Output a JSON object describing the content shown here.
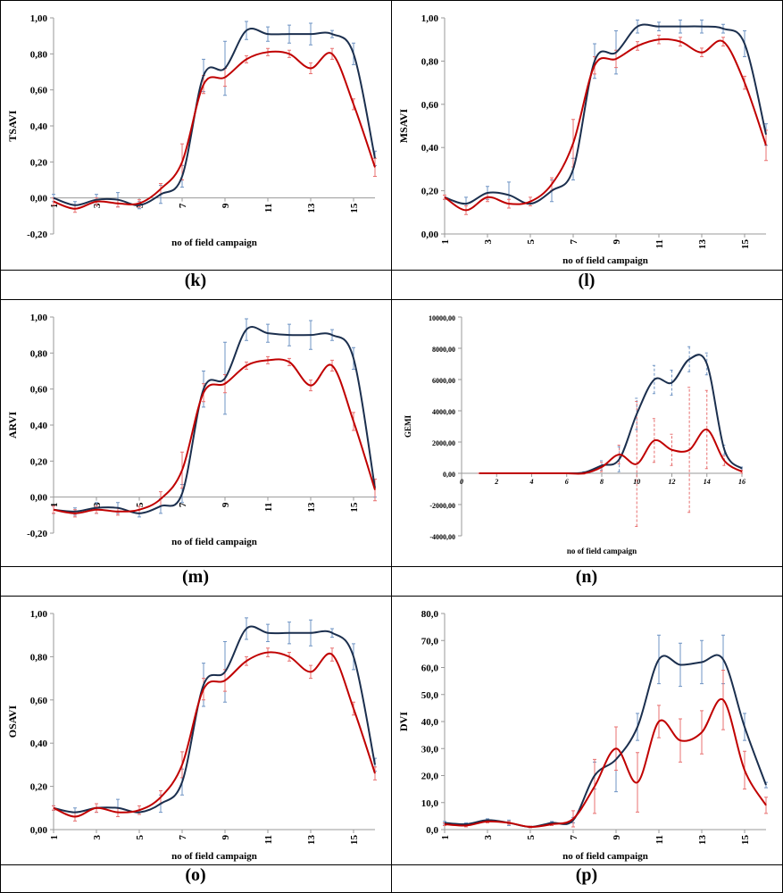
{
  "chart_data": [
    {
      "type": "line",
      "panel_label": "(k)",
      "ylabel": "TSAVI",
      "xlabel": "no of field campaign",
      "x": [
        1,
        2,
        3,
        4,
        5,
        6,
        7,
        8,
        9,
        10,
        11,
        12,
        13,
        14,
        15,
        16
      ],
      "xlim": [
        1,
        16
      ],
      "xticks": [
        1,
        3,
        5,
        7,
        9,
        11,
        13,
        15
      ],
      "ylim": [
        -0.2,
        1
      ],
      "yticks": [
        {
          "value": -0.2,
          "label": "-0,20"
        },
        {
          "value": 0,
          "label": "0,00"
        },
        {
          "value": 0.2,
          "label": "0,20"
        },
        {
          "value": 0.4,
          "label": "0,40"
        },
        {
          "value": 0.6,
          "label": "0,60"
        },
        {
          "value": 0.8,
          "label": "0,80"
        },
        {
          "value": 1,
          "label": "1,00"
        }
      ],
      "series": [
        {
          "color": "#1b2f4e",
          "values": [
            0.0,
            -0.04,
            -0.01,
            -0.01,
            -0.04,
            0.02,
            0.12,
            0.68,
            0.72,
            0.93,
            0.91,
            0.91,
            0.91,
            0.91,
            0.8,
            0.22
          ],
          "errors": [
            0.02,
            0.02,
            0.03,
            0.04,
            0.02,
            0.05,
            0.06,
            0.09,
            0.15,
            0.05,
            0.04,
            0.05,
            0.06,
            0.02,
            0.06,
            0.04
          ]
        },
        {
          "color": "#c00000",
          "values": [
            -0.02,
            -0.06,
            -0.02,
            -0.03,
            -0.03,
            0.05,
            0.2,
            0.63,
            0.67,
            0.77,
            0.81,
            0.8,
            0.72,
            0.8,
            0.52,
            0.17
          ],
          "errors": [
            0.02,
            0.02,
            0.02,
            0.02,
            0.02,
            0.03,
            0.1,
            0.05,
            0.05,
            0.02,
            0.02,
            0.02,
            0.03,
            0.03,
            0.03,
            0.05
          ]
        }
      ]
    },
    {
      "type": "line",
      "panel_label": "(l)",
      "ylabel": "MSAVI",
      "xlabel": "no of field campaign",
      "x": [
        1,
        2,
        3,
        4,
        5,
        6,
        7,
        8,
        9,
        10,
        11,
        12,
        13,
        14,
        15,
        16
      ],
      "xlim": [
        1,
        16
      ],
      "xticks": [
        1,
        3,
        5,
        7,
        9,
        11,
        13,
        15
      ],
      "ylim": [
        0,
        1
      ],
      "yticks": [
        {
          "value": 0,
          "label": "0,00"
        },
        {
          "value": 0.2,
          "label": "0,20"
        },
        {
          "value": 0.4,
          "label": "0,40"
        },
        {
          "value": 0.6,
          "label": "0,60"
        },
        {
          "value": 0.8,
          "label": "0,80"
        },
        {
          "value": 1,
          "label": "1,00"
        }
      ],
      "series": [
        {
          "color": "#1b2f4e",
          "values": [
            0.17,
            0.14,
            0.19,
            0.18,
            0.14,
            0.2,
            0.3,
            0.8,
            0.84,
            0.96,
            0.96,
            0.96,
            0.96,
            0.95,
            0.88,
            0.46
          ],
          "errors": [
            0.01,
            0.03,
            0.03,
            0.06,
            0.01,
            0.05,
            0.05,
            0.08,
            0.1,
            0.03,
            0.02,
            0.03,
            0.03,
            0.02,
            0.06,
            0.05
          ]
        },
        {
          "color": "#c00000",
          "values": [
            0.17,
            0.11,
            0.17,
            0.14,
            0.15,
            0.23,
            0.42,
            0.78,
            0.81,
            0.87,
            0.9,
            0.89,
            0.84,
            0.89,
            0.7,
            0.41
          ],
          "errors": [
            0.01,
            0.02,
            0.02,
            0.02,
            0.02,
            0.03,
            0.11,
            0.04,
            0.04,
            0.02,
            0.02,
            0.02,
            0.02,
            0.02,
            0.03,
            0.07
          ]
        }
      ]
    },
    {
      "type": "line",
      "panel_label": "(m)",
      "ylabel": "ARVI",
      "xlabel": "no of field campaign",
      "x": [
        1,
        2,
        3,
        4,
        5,
        6,
        7,
        8,
        9,
        10,
        11,
        12,
        13,
        14,
        15,
        16
      ],
      "xlim": [
        1,
        16
      ],
      "xticks": [
        1,
        3,
        5,
        7,
        9,
        11,
        13,
        15
      ],
      "ylim": [
        -0.2,
        1
      ],
      "yticks": [
        {
          "value": -0.2,
          "label": "-0,20"
        },
        {
          "value": 0,
          "label": "0,00"
        },
        {
          "value": 0.2,
          "label": "0,20"
        },
        {
          "value": 0.4,
          "label": "0,40"
        },
        {
          "value": 0.6,
          "label": "0,60"
        },
        {
          "value": 0.8,
          "label": "0,80"
        },
        {
          "value": 1,
          "label": "1,00"
        }
      ],
      "series": [
        {
          "color": "#1b2f4e",
          "values": [
            -0.07,
            -0.08,
            -0.06,
            -0.06,
            -0.09,
            -0.05,
            0.02,
            0.6,
            0.66,
            0.93,
            0.91,
            0.9,
            0.9,
            0.9,
            0.77,
            0.05
          ],
          "errors": [
            0.02,
            0.02,
            0.03,
            0.03,
            0.02,
            0.04,
            0.05,
            0.1,
            0.2,
            0.06,
            0.05,
            0.06,
            0.08,
            0.03,
            0.06,
            0.05
          ]
        },
        {
          "color": "#c00000",
          "values": [
            -0.07,
            -0.09,
            -0.07,
            -0.08,
            -0.07,
            -0.01,
            0.15,
            0.58,
            0.63,
            0.73,
            0.76,
            0.75,
            0.62,
            0.73,
            0.42,
            0.04
          ],
          "errors": [
            0.02,
            0.02,
            0.02,
            0.02,
            0.02,
            0.04,
            0.1,
            0.05,
            0.05,
            0.02,
            0.02,
            0.02,
            0.03,
            0.03,
            0.05,
            0.06
          ]
        }
      ]
    },
    {
      "type": "line",
      "panel_label": "(n)",
      "ylabel": "GEMI",
      "xlabel": "no of field campaign",
      "x": [
        1,
        2,
        3,
        4,
        5,
        6,
        7,
        8,
        9,
        10,
        11,
        12,
        13,
        14,
        15,
        16
      ],
      "xlim": [
        0,
        16
      ],
      "xticks": [
        0,
        2,
        4,
        6,
        8,
        10,
        12,
        14,
        16
      ],
      "ylim": [
        -4000,
        10000
      ],
      "yticks": [
        {
          "value": -4000,
          "label": "-4000,00"
        },
        {
          "value": -2000,
          "label": "-2000,00"
        },
        {
          "value": 0,
          "label": "0,00"
        },
        {
          "value": 2000,
          "label": "2000,00"
        },
        {
          "value": 4000,
          "label": "4000,00"
        },
        {
          "value": 6000,
          "label": "6000,00"
        },
        {
          "value": 8000,
          "label": "8000,00"
        },
        {
          "value": 10000,
          "label": "10000,00"
        }
      ],
      "series": [
        {
          "color": "#1b2f4e",
          "values": [
            0,
            0,
            0,
            0,
            0,
            0,
            50,
            500,
            900,
            3800,
            6000,
            5800,
            7300,
            7000,
            1500,
            300
          ],
          "errors": [
            0,
            0,
            0,
            0,
            0,
            0,
            50,
            300,
            800,
            1000,
            900,
            800,
            800,
            700,
            300,
            100
          ]
        },
        {
          "color": "#c00000",
          "values": [
            0,
            0,
            0,
            0,
            0,
            0,
            0,
            400,
            1200,
            600,
            2100,
            1500,
            1500,
            2800,
            800,
            100
          ],
          "errors": [
            0,
            0,
            0,
            0,
            0,
            0,
            50,
            300,
            600,
            4000,
            1400,
            1000,
            4000,
            2500,
            300,
            100
          ]
        }
      ]
    },
    {
      "type": "line",
      "panel_label": "(o)",
      "ylabel": "OSAVI",
      "xlabel": "no of field campaign",
      "x": [
        1,
        2,
        3,
        4,
        5,
        6,
        7,
        8,
        9,
        10,
        11,
        12,
        13,
        14,
        15,
        16
      ],
      "xlim": [
        1,
        16
      ],
      "xticks": [
        1,
        3,
        5,
        7,
        9,
        11,
        13,
        15
      ],
      "ylim": [
        0,
        1
      ],
      "yticks": [
        {
          "value": 0,
          "label": "0,00"
        },
        {
          "value": 0.2,
          "label": "0,20"
        },
        {
          "value": 0.4,
          "label": "0,40"
        },
        {
          "value": 0.6,
          "label": "0,60"
        },
        {
          "value": 0.8,
          "label": "0,80"
        },
        {
          "value": 1,
          "label": "1,00"
        }
      ],
      "series": [
        {
          "color": "#1b2f4e",
          "values": [
            0.1,
            0.08,
            0.1,
            0.1,
            0.08,
            0.12,
            0.22,
            0.67,
            0.73,
            0.93,
            0.91,
            0.91,
            0.91,
            0.91,
            0.8,
            0.3
          ],
          "errors": [
            0.01,
            0.02,
            0.02,
            0.04,
            0.01,
            0.04,
            0.06,
            0.1,
            0.14,
            0.05,
            0.04,
            0.05,
            0.06,
            0.02,
            0.06,
            0.03
          ]
        },
        {
          "color": "#c00000",
          "values": [
            0.1,
            0.06,
            0.1,
            0.08,
            0.09,
            0.15,
            0.3,
            0.65,
            0.69,
            0.78,
            0.82,
            0.8,
            0.73,
            0.81,
            0.56,
            0.26
          ],
          "errors": [
            0.01,
            0.02,
            0.02,
            0.02,
            0.02,
            0.03,
            0.06,
            0.05,
            0.05,
            0.02,
            0.02,
            0.02,
            0.03,
            0.03,
            0.03,
            0.03
          ]
        }
      ]
    },
    {
      "type": "line",
      "panel_label": "(p)",
      "ylabel": "DVI",
      "xlabel": "no of field campaign",
      "x": [
        1,
        2,
        3,
        4,
        5,
        6,
        7,
        8,
        9,
        10,
        11,
        12,
        13,
        14,
        15,
        16
      ],
      "xlim": [
        1,
        16
      ],
      "xticks": [
        1,
        3,
        5,
        7,
        9,
        11,
        13,
        15
      ],
      "ylim": [
        0,
        80
      ],
      "yticks": [
        {
          "value": 0,
          "label": "0,0"
        },
        {
          "value": 10,
          "label": "10,0"
        },
        {
          "value": 20,
          "label": "20,0"
        },
        {
          "value": 30,
          "label": "30,0"
        },
        {
          "value": 40,
          "label": "40,0"
        },
        {
          "value": 50,
          "label": "50,0"
        },
        {
          "value": 60,
          "label": "60,0"
        },
        {
          "value": 70,
          "label": "70,0"
        },
        {
          "value": 80,
          "label": "80,0"
        }
      ],
      "series": [
        {
          "color": "#1b2f4e",
          "values": [
            2.5,
            2,
            3.5,
            2.5,
            1,
            2.5,
            3.5,
            20,
            26,
            38,
            63,
            61,
            62,
            63,
            38,
            16.5
          ],
          "errors": [
            0.5,
            0.5,
            0.5,
            1,
            0.3,
            0.5,
            1,
            5,
            12,
            5,
            9,
            8,
            8,
            9,
            5,
            1
          ]
        },
        {
          "color": "#c00000",
          "values": [
            2,
            1.5,
            3,
            2.5,
            1,
            2,
            4,
            16,
            30,
            17.5,
            40,
            33,
            36,
            48,
            22,
            9
          ],
          "errors": [
            0.5,
            0.5,
            0.5,
            0.5,
            0.3,
            0.5,
            3,
            10,
            8,
            11,
            6,
            8,
            8,
            11,
            7,
            3
          ]
        }
      ]
    }
  ]
}
